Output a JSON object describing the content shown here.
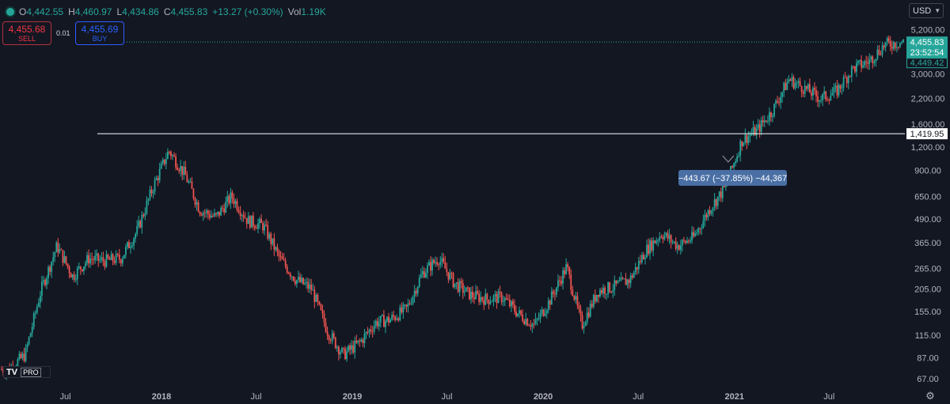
{
  "header": {
    "o_key": "O",
    "o_val": "4,442.55",
    "h_key": "H",
    "h_val": "4,460.97",
    "l_key": "L",
    "l_val": "4,434.86",
    "c_key": "C",
    "c_val": "4,455.83",
    "change": "+13.27 (+0.30%)",
    "vol_key": "Vol",
    "vol_val": "1.19K"
  },
  "trade": {
    "sell_price": "4,455.68",
    "sell_label": "SELL",
    "buy_price": "4,455.69",
    "buy_label": "BUY",
    "spread": "0.01"
  },
  "currency": "USD",
  "logo": {
    "mark": "TV",
    "badge": "PRO"
  },
  "colors": {
    "up": "#26a69a",
    "down": "#ef5350",
    "bg": "#131722",
    "hline": "#ffffff",
    "measure_bg": "#4a6fa5"
  },
  "chart_data": {
    "type": "candlestick",
    "y_scale": "log",
    "ylim": [
      60,
      5600
    ],
    "y_ticks": [
      "5,200.00",
      "3,000.00",
      "2,200.00",
      "1,600.00",
      "1,200.00",
      "900.00",
      "650.00",
      "490.00",
      "365.00",
      "265.00",
      "205.00",
      "155.00",
      "115.00",
      "87.00",
      "67.00"
    ],
    "x_ticks": [
      "Jul",
      "2018",
      "Jul",
      "2019",
      "Jul",
      "2020",
      "Jul",
      "2021",
      "Jul"
    ],
    "horizontal_line": {
      "value": 1419.95,
      "label": "1,419.95"
    },
    "current_price": {
      "value": 4455.83,
      "label": "4,455.83",
      "countdown": "23:52:54"
    },
    "prev_close_label": {
      "value": 4449.42,
      "label": "4,449.42"
    },
    "measurement_label": "−443.67 (−37.85%) −44,367",
    "close_path": [
      [
        "2017-03",
        75
      ],
      [
        "2017-04",
        90
      ],
      [
        "2017-05",
        200
      ],
      [
        "2017-06",
        350
      ],
      [
        "2017-07",
        240
      ],
      [
        "2017-08",
        300
      ],
      [
        "2017-09",
        290
      ],
      [
        "2017-10",
        300
      ],
      [
        "2017-11",
        420
      ],
      [
        "2017-12",
        720
      ],
      [
        "2018-01",
        1150
      ],
      [
        "2018-02",
        850
      ],
      [
        "2018-03",
        550
      ],
      [
        "2018-04",
        500
      ],
      [
        "2018-05",
        650
      ],
      [
        "2018-06",
        480
      ],
      [
        "2018-07",
        450
      ],
      [
        "2018-08",
        300
      ],
      [
        "2018-09",
        230
      ],
      [
        "2018-10",
        205
      ],
      [
        "2018-11",
        120
      ],
      [
        "2018-12",
        90
      ],
      [
        "2019-01",
        105
      ],
      [
        "2019-02",
        135
      ],
      [
        "2019-03",
        140
      ],
      [
        "2019-04",
        160
      ],
      [
        "2019-05",
        250
      ],
      [
        "2019-06",
        300
      ],
      [
        "2019-07",
        220
      ],
      [
        "2019-08",
        190
      ],
      [
        "2019-09",
        180
      ],
      [
        "2019-10",
        185
      ],
      [
        "2019-11",
        150
      ],
      [
        "2019-12",
        130
      ],
      [
        "2020-01",
        180
      ],
      [
        "2020-02",
        270
      ],
      [
        "2020-03",
        130
      ],
      [
        "2020-04",
        200
      ],
      [
        "2020-05",
        210
      ],
      [
        "2020-06",
        230
      ],
      [
        "2020-07",
        330
      ],
      [
        "2020-08",
        410
      ],
      [
        "2020-09",
        350
      ],
      [
        "2020-10",
        390
      ],
      [
        "2020-11",
        560
      ],
      [
        "2020-12",
        730
      ],
      [
        "2021-01",
        1300
      ],
      [
        "2021-02",
        1500
      ],
      [
        "2021-03",
        1900
      ],
      [
        "2021-04",
        2800
      ],
      [
        "2021-05",
        2500
      ],
      [
        "2021-06",
        2200
      ],
      [
        "2021-07",
        2400
      ],
      [
        "2021-08",
        3200
      ],
      [
        "2021-09",
        3500
      ],
      [
        "2021-10",
        4300
      ],
      [
        "2021-11",
        4450
      ]
    ]
  }
}
